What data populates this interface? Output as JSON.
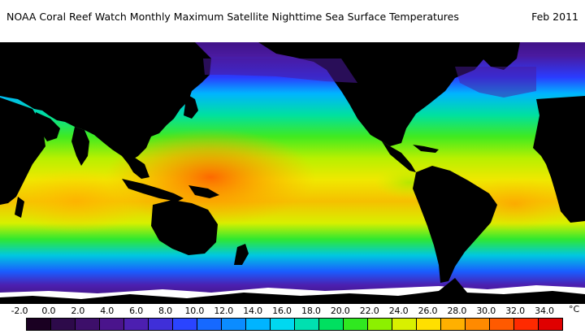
{
  "map": {
    "title": "NOAA Coral Reef Watch Monthly Maximum Satellite Nighttime Sea Surface Temperatures",
    "date": "Feb 2011",
    "projection": "equirectangular",
    "land_color": "#000000",
    "ice_color": "#ffffff"
  },
  "legend": {
    "unit": "°C",
    "tick_labels": [
      "-2.0",
      "0.0",
      "2.0",
      "4.0",
      "6.0",
      "8.0",
      "10.0",
      "12.0",
      "14.0",
      "16.0",
      "18.0",
      "20.0",
      "22.0",
      "24.0",
      "26.0",
      "28.0",
      "30.0",
      "32.0",
      "34.0"
    ],
    "colors": [
      "#1a0022",
      "#2d0a4a",
      "#3d0f6a",
      "#4a148c",
      "#4c1fb0",
      "#3f2fd8",
      "#2a44ff",
      "#1669ff",
      "#0b8cff",
      "#00b4ff",
      "#00d8f0",
      "#00e0b0",
      "#00e060",
      "#30e820",
      "#8cf000",
      "#d8f000",
      "#ffe000",
      "#ffb000",
      "#ff8a00",
      "#ff5a00",
      "#ff2a00",
      "#e00000"
    ]
  }
}
